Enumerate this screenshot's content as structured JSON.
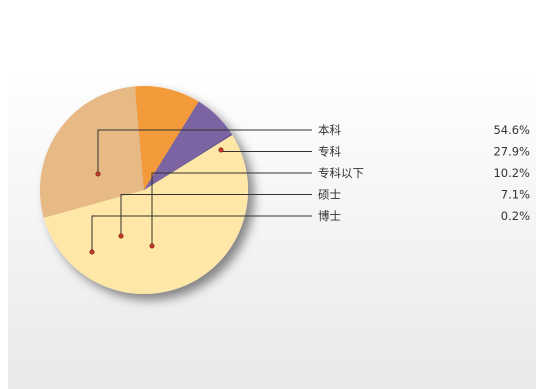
{
  "chart_data": {
    "type": "pie",
    "title": "",
    "slices": [
      {
        "label": "本科",
        "value": 54.6,
        "display": "54.6%",
        "color": "#FFE7A8"
      },
      {
        "label": "专科",
        "value": 27.9,
        "display": "27.9%",
        "color": "#E6B985"
      },
      {
        "label": "专科以下",
        "value": 10.2,
        "display": "10.2%",
        "color": "#F39A3B"
      },
      {
        "label": "硕士",
        "value": 7.1,
        "display": "7.1%",
        "color": "#7C63A1"
      },
      {
        "label": "博士",
        "value": 0.2,
        "display": "0.2%",
        "color": "#5B4E8A"
      }
    ],
    "legend": "right",
    "leader_dot_color": "#C0392B"
  }
}
